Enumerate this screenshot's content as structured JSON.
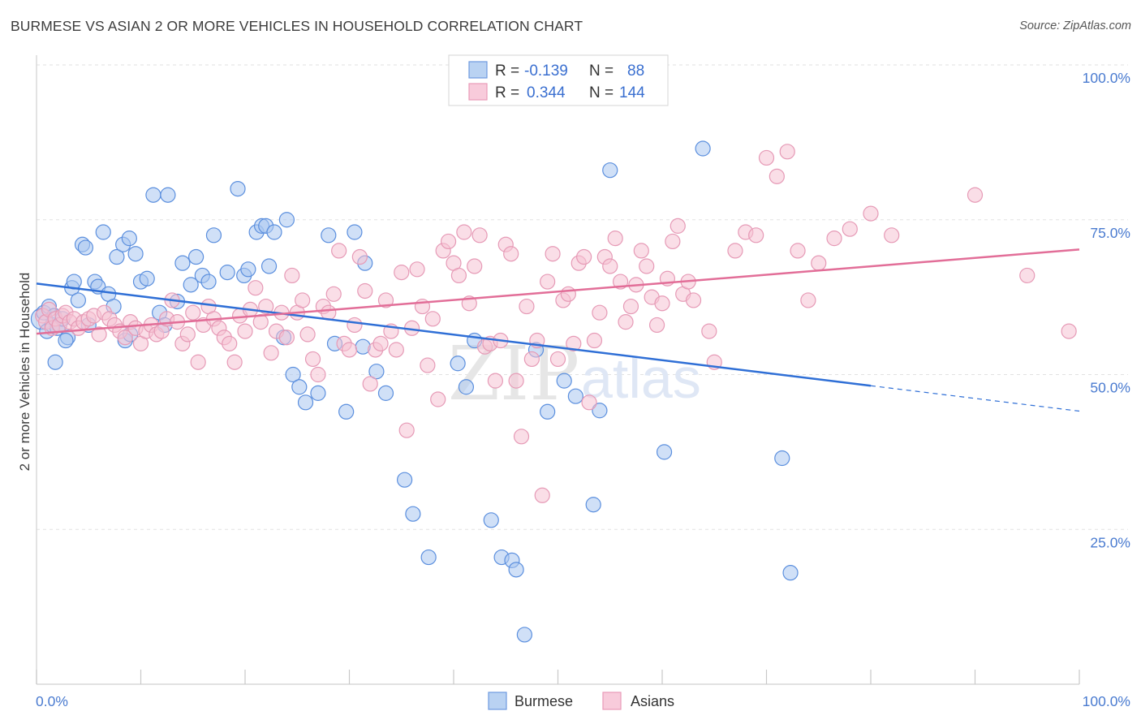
{
  "title": "BURMESE VS ASIAN 2 OR MORE VEHICLES IN HOUSEHOLD CORRELATION CHART",
  "source": "Source: ZipAtlas.com",
  "watermark": {
    "zip": "ZIP",
    "atlas": "atlas"
  },
  "legend": {
    "r_label": "R =",
    "n_label": "N =",
    "rows": [
      {
        "series": "Burmese",
        "r": "-0.139",
        "n": "88",
        "color": "#7aaae8"
      },
      {
        "series": "Asians",
        "r": "0.344",
        "n": "144",
        "color": "#f0a0bc"
      }
    ]
  },
  "bottom_legend": [
    "Burmese",
    "Asians"
  ],
  "colors": {
    "burmese_fill": "#a9c7f0",
    "burmese_stroke": "#5b8fde",
    "burmese_line": "#2f6fd6",
    "asians_fill": "#f6c3d4",
    "asians_stroke": "#e69ab6",
    "asians_line": "#e26e98",
    "tick_color": "#4a7bd0"
  },
  "chart_data": {
    "type": "scatter",
    "title": "BURMESE VS ASIAN 2 OR MORE VEHICLES IN HOUSEHOLD CORRELATION CHART",
    "xlabel": "",
    "ylabel": "2 or more Vehicles in Household",
    "xlim": [
      0,
      100
    ],
    "ylim": [
      0,
      100
    ],
    "x_tick_labels": [
      "0.0%",
      "100.0%"
    ],
    "y_tick_labels": [
      "100.0%",
      "75.0%",
      "50.0%",
      "25.0%"
    ],
    "y_ticks": [
      100,
      75,
      50,
      25
    ],
    "grid": true,
    "legend_position": "top-center",
    "series": [
      {
        "name": "Burmese",
        "r": -0.139,
        "n": 88,
        "trend": {
          "x0": 0,
          "y0": 64.7,
          "x1": 80,
          "y1": 48.2,
          "dashed_to_x": 100,
          "dashed_to_y": 44.1
        },
        "points": [
          [
            0.5,
            59
          ],
          [
            0.7,
            60
          ],
          [
            1,
            57
          ],
          [
            1.2,
            61
          ],
          [
            1.5,
            58
          ],
          [
            1.7,
            59.5
          ],
          [
            2,
            57.5
          ],
          [
            2.2,
            58
          ],
          [
            2.5,
            59
          ],
          [
            3,
            56
          ],
          [
            1.8,
            52
          ],
          [
            2.8,
            55.5
          ],
          [
            3.4,
            64
          ],
          [
            3.6,
            65
          ],
          [
            4,
            62
          ],
          [
            4.4,
            71
          ],
          [
            4.7,
            70.5
          ],
          [
            5,
            58
          ],
          [
            5.6,
            65
          ],
          [
            5.9,
            64.2
          ],
          [
            6.4,
            73
          ],
          [
            6.9,
            63
          ],
          [
            7.4,
            61
          ],
          [
            7.7,
            69
          ],
          [
            8.3,
            71
          ],
          [
            8.5,
            55.5
          ],
          [
            8.9,
            72
          ],
          [
            9,
            56.5
          ],
          [
            9.5,
            69.5
          ],
          [
            10,
            65
          ],
          [
            10.6,
            65.5
          ],
          [
            11.2,
            79
          ],
          [
            11.8,
            60
          ],
          [
            12.3,
            58
          ],
          [
            12.6,
            79
          ],
          [
            13.5,
            61.8
          ],
          [
            14,
            68
          ],
          [
            14.8,
            64.5
          ],
          [
            15.3,
            69
          ],
          [
            15.9,
            66
          ],
          [
            16.5,
            65
          ],
          [
            17,
            72.5
          ],
          [
            18.3,
            66.5
          ],
          [
            19.3,
            80
          ],
          [
            19.9,
            66
          ],
          [
            20.3,
            67
          ],
          [
            21.1,
            73
          ],
          [
            21.6,
            74
          ],
          [
            22,
            74
          ],
          [
            22.3,
            67.5
          ],
          [
            22.8,
            73
          ],
          [
            24,
            75
          ],
          [
            24.6,
            50
          ],
          [
            25.2,
            48
          ],
          [
            25.8,
            45.5
          ],
          [
            27,
            47
          ],
          [
            28,
            72.5
          ],
          [
            28.6,
            55
          ],
          [
            29.7,
            44
          ],
          [
            30.5,
            73
          ],
          [
            31.3,
            54.5
          ],
          [
            31.5,
            68
          ],
          [
            32.6,
            50.5
          ],
          [
            33.5,
            47
          ],
          [
            35.3,
            33
          ],
          [
            36.1,
            27.5
          ],
          [
            37.6,
            20.5
          ],
          [
            40.4,
            51.8
          ],
          [
            41.2,
            48
          ],
          [
            42,
            55.5
          ],
          [
            43.6,
            26.5
          ],
          [
            44.6,
            20.5
          ],
          [
            45.6,
            20
          ],
          [
            46,
            18.5
          ],
          [
            46.8,
            8
          ],
          [
            47.9,
            54
          ],
          [
            49,
            44
          ],
          [
            50.6,
            49
          ],
          [
            51.7,
            46.5
          ],
          [
            53.4,
            29
          ],
          [
            54,
            44.2
          ],
          [
            55,
            83
          ],
          [
            58.3,
            100
          ],
          [
            60.2,
            37.5
          ],
          [
            63.9,
            86.5
          ],
          [
            71.5,
            36.5
          ],
          [
            72.3,
            18
          ],
          [
            23.7,
            56
          ]
        ]
      },
      {
        "name": "Asians",
        "r": 0.344,
        "n": 144,
        "trend": {
          "x0": 0,
          "y0": 56.6,
          "x1": 100,
          "y1": 70.2
        },
        "points": [
          [
            0.6,
            59.5
          ],
          [
            0.9,
            58.5
          ],
          [
            1.2,
            60.5
          ],
          [
            1.5,
            57.5
          ],
          [
            1.8,
            59
          ],
          [
            2.2,
            58
          ],
          [
            2.5,
            59.5
          ],
          [
            2.8,
            60
          ],
          [
            3.2,
            58.5
          ],
          [
            3.6,
            59
          ],
          [
            4,
            57.5
          ],
          [
            4.5,
            58.5
          ],
          [
            5,
            59
          ],
          [
            5.5,
            59.5
          ],
          [
            6,
            56.5
          ],
          [
            6.5,
            60
          ],
          [
            7,
            59
          ],
          [
            7.5,
            58
          ],
          [
            8,
            57
          ],
          [
            8.5,
            56
          ],
          [
            9,
            58.5
          ],
          [
            9.5,
            57.5
          ],
          [
            10,
            55
          ],
          [
            10.5,
            57
          ],
          [
            11,
            58
          ],
          [
            11.5,
            56.5
          ],
          [
            12,
            57
          ],
          [
            12.5,
            59
          ],
          [
            13,
            62
          ],
          [
            13.5,
            58.5
          ],
          [
            14,
            55
          ],
          [
            14.5,
            56.5
          ],
          [
            15,
            60
          ],
          [
            15.5,
            52
          ],
          [
            16,
            58
          ],
          [
            16.5,
            61
          ],
          [
            17,
            59
          ],
          [
            17.5,
            57.5
          ],
          [
            18,
            56
          ],
          [
            18.5,
            55
          ],
          [
            19,
            52
          ],
          [
            19.5,
            59.5
          ],
          [
            20,
            57
          ],
          [
            20.5,
            60.5
          ],
          [
            21,
            64
          ],
          [
            21.5,
            58.5
          ],
          [
            22,
            61
          ],
          [
            22.5,
            53.5
          ],
          [
            23,
            57
          ],
          [
            23.5,
            60
          ],
          [
            24,
            56
          ],
          [
            24.5,
            66
          ],
          [
            25,
            60
          ],
          [
            25.5,
            62
          ],
          [
            26,
            56.5
          ],
          [
            26.5,
            52.5
          ],
          [
            27,
            50
          ],
          [
            27.5,
            61
          ],
          [
            28,
            60
          ],
          [
            28.5,
            63
          ],
          [
            29,
            70
          ],
          [
            29.5,
            55
          ],
          [
            30,
            54
          ],
          [
            30.5,
            58
          ],
          [
            31,
            69
          ],
          [
            31.5,
            63.5
          ],
          [
            32,
            48.5
          ],
          [
            32.5,
            54
          ],
          [
            33,
            55
          ],
          [
            33.5,
            62
          ],
          [
            34,
            57
          ],
          [
            34.5,
            54
          ],
          [
            35,
            66.5
          ],
          [
            35.5,
            41
          ],
          [
            36,
            57.5
          ],
          [
            36.5,
            67
          ],
          [
            37,
            61
          ],
          [
            37.5,
            51.5
          ],
          [
            38,
            59
          ],
          [
            38.5,
            46
          ],
          [
            39,
            70
          ],
          [
            39.5,
            71.5
          ],
          [
            40,
            68
          ],
          [
            40.5,
            66
          ],
          [
            41,
            73
          ],
          [
            41.5,
            61.5
          ],
          [
            42,
            67.5
          ],
          [
            42.5,
            72.5
          ],
          [
            43,
            54.5
          ],
          [
            43.5,
            55
          ],
          [
            44,
            49
          ],
          [
            44.5,
            55.5
          ],
          [
            45,
            71
          ],
          [
            45.5,
            69.5
          ],
          [
            46,
            49
          ],
          [
            46.5,
            40
          ],
          [
            47,
            61
          ],
          [
            47.5,
            52.5
          ],
          [
            48,
            55.5
          ],
          [
            48.5,
            30.5
          ],
          [
            49,
            65
          ],
          [
            49.5,
            69.5
          ],
          [
            50,
            52.5
          ],
          [
            50.5,
            62
          ],
          [
            51,
            63
          ],
          [
            51.5,
            55
          ],
          [
            52,
            68
          ],
          [
            52.5,
            69
          ],
          [
            53,
            45.5
          ],
          [
            53.5,
            55.5
          ],
          [
            54,
            60
          ],
          [
            54.5,
            69
          ],
          [
            55,
            67.5
          ],
          [
            55.5,
            72
          ],
          [
            56,
            65
          ],
          [
            56.5,
            58.5
          ],
          [
            57,
            61
          ],
          [
            57.5,
            64.5
          ],
          [
            58,
            70
          ],
          [
            58.5,
            67.5
          ],
          [
            59,
            62.5
          ],
          [
            59.5,
            58
          ],
          [
            60,
            61.5
          ],
          [
            60.5,
            65.5
          ],
          [
            61,
            71.5
          ],
          [
            61.5,
            74
          ],
          [
            62,
            63
          ],
          [
            62.5,
            65
          ],
          [
            63,
            62
          ],
          [
            64.5,
            57
          ],
          [
            65,
            52
          ],
          [
            67,
            70
          ],
          [
            68,
            73
          ],
          [
            69,
            72.5
          ],
          [
            70,
            85
          ],
          [
            71,
            82
          ],
          [
            72,
            86
          ],
          [
            73,
            70
          ],
          [
            74,
            62
          ],
          [
            75,
            68
          ],
          [
            76.5,
            72
          ],
          [
            78,
            73.5
          ],
          [
            80,
            76
          ],
          [
            82,
            72.5
          ],
          [
            90,
            79
          ],
          [
            95,
            66
          ],
          [
            99,
            57
          ]
        ]
      }
    ]
  }
}
